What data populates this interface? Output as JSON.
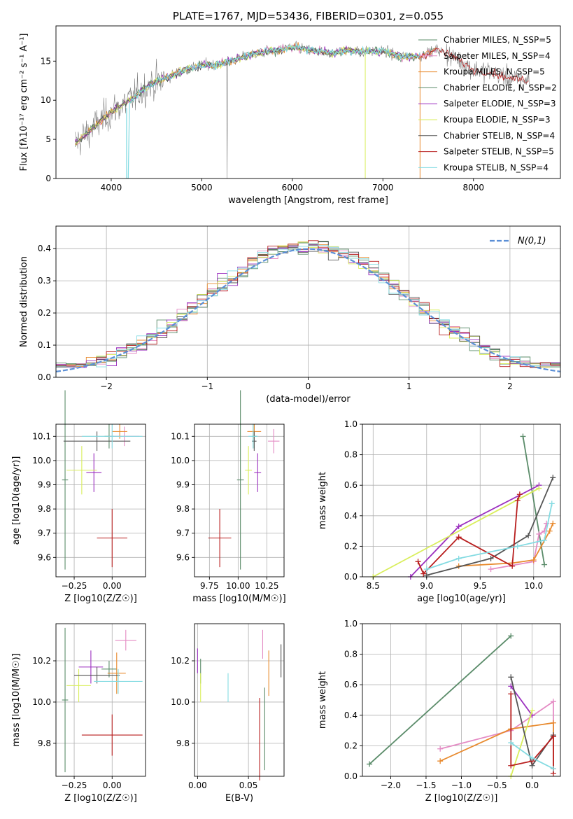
{
  "colors": {
    "chab_miles": "#5b8c6a",
    "salp_miles": "#e48bc4",
    "krou_miles": "#e88a2e",
    "chab_elod": "#5b8c6a",
    "salp_elod": "#9b2fbf",
    "krou_elod": "#d9ee5c",
    "chab_stel": "#555555",
    "salp_stel": "#b81e1e",
    "krou_stel": "#84dbe2",
    "spectrum_data": "#808080",
    "normal_curve": "#5b8fd6"
  },
  "chart_data": [
    {
      "id": "spectrum",
      "type": "line",
      "title": "PLATE=1767, MJD=53436, FIBERID=0301, z=0.055",
      "xlabel": "wavelength [Angstrom, rest frame]",
      "ylabel": "Flux [fλ10⁻¹⁷ erg cm⁻² s⁻¹ A⁻¹]",
      "xlim": [
        3390,
        8960
      ],
      "ylim": [
        0,
        19.5
      ],
      "xticks": [
        4000,
        5000,
        6000,
        7000,
        8000
      ],
      "yticks": [
        0,
        5,
        10,
        15
      ],
      "legend_position": "right",
      "series": [
        {
          "name": "Chabrier MILES, N_SSP=5",
          "key": "chab_miles"
        },
        {
          "name": "Salpeter MILES, N_SSP=4",
          "key": "salp_miles"
        },
        {
          "name": "Kroupa MILES, N_SSP=5",
          "key": "krou_miles"
        },
        {
          "name": "Chabrier ELODIE, N_SSP=2",
          "key": "chab_elod"
        },
        {
          "name": "Salpeter ELODIE, N_SSP=3",
          "key": "salp_elod"
        },
        {
          "name": "Kroupa ELODIE, N_SSP=3",
          "key": "krou_elod"
        },
        {
          "name": "Chabrier STELIB, N_SSP=4",
          "key": "chab_stel"
        },
        {
          "name": "Salpeter STELIB, N_SSP=5",
          "key": "salp_stel"
        },
        {
          "name": "Kroupa STELIB, N_SSP=4",
          "key": "krou_stel"
        }
      ],
      "continuum": {
        "x": [
          3600,
          3800,
          4000,
          4200,
          4400,
          4600,
          4800,
          5000,
          5200,
          5400,
          5600,
          5800,
          6000,
          6200,
          6400,
          6600,
          6800,
          7000,
          7200,
          7400,
          7600,
          7800,
          8000,
          8200,
          8400,
          8600
        ],
        "y": [
          4.5,
          6.5,
          8.5,
          10.0,
          11.8,
          12.8,
          13.8,
          14.5,
          14.6,
          15.3,
          16.0,
          16.3,
          16.8,
          16.4,
          16.0,
          16.4,
          16.2,
          16.3,
          15.6,
          15.6,
          16.5,
          15.4,
          13.9,
          13.6,
          12.8,
          12.6
        ]
      }
    },
    {
      "id": "residuals",
      "type": "histogram",
      "xlabel": "(data-model)/error",
      "ylabel": "Normed distribution",
      "xlim": [
        -2.5,
        2.5
      ],
      "ylim": [
        0,
        0.47
      ],
      "xticks": [
        -2,
        -1,
        0,
        1,
        2
      ],
      "yticks": [
        0.0,
        0.1,
        0.2,
        0.3,
        0.4
      ],
      "legend": "N(0,1)",
      "legend_position": "top-right",
      "grid": true,
      "bin_width": 0.1
    },
    {
      "id": "age_vs_Z",
      "type": "errorbar",
      "xlabel": "Z [log10(Z/Z☉)]",
      "ylabel": "age  [log10(age/yr)]",
      "xlim": [
        -0.37,
        0.22
      ],
      "ylim": [
        9.52,
        10.15
      ],
      "xticks": [
        -0.25,
        0.0
      ],
      "yticks": [
        9.6,
        9.7,
        9.8,
        9.9,
        10.0,
        10.1
      ],
      "points": [
        {
          "key": "chab_miles",
          "x": -0.02,
          "y": 10.1,
          "xerr": 0.03,
          "yerr": 0.05
        },
        {
          "key": "salp_miles",
          "x": 0.08,
          "y": 10.1,
          "xerr": 0.1,
          "yerr": 0.04
        },
        {
          "key": "krou_miles",
          "x": 0.05,
          "y": 10.12,
          "xerr": 0.05,
          "yerr": 0.03
        },
        {
          "key": "chab_elod",
          "x": -0.31,
          "y": 9.92,
          "xerr": 0.02,
          "yerr": 0.37
        },
        {
          "key": "salp_elod",
          "x": -0.12,
          "y": 9.95,
          "xerr": 0.05,
          "yerr": 0.08
        },
        {
          "key": "krou_elod",
          "x": -0.2,
          "y": 9.96,
          "xerr": 0.1,
          "yerr": 0.1
        },
        {
          "key": "chab_stel",
          "x": -0.1,
          "y": 10.08,
          "xerr": 0.22,
          "yerr": 0.04
        },
        {
          "key": "salp_stel",
          "x": 0.0,
          "y": 9.68,
          "xerr": 0.1,
          "yerr": 0.12
        },
        {
          "key": "krou_stel",
          "x": 0.0,
          "y": 10.1,
          "xerr": 0.2,
          "yerr": 0.05
        }
      ]
    },
    {
      "id": "age_vs_mass",
      "type": "errorbar",
      "xlabel": "mass [log10(M/M☉)]",
      "ylabel": "",
      "xlim": [
        9.62,
        10.4
      ],
      "ylim": [
        9.52,
        10.15
      ],
      "xticks": [
        9.75,
        10.0,
        10.25
      ],
      "yticks": [
        9.6,
        9.7,
        9.8,
        9.9,
        10.0,
        10.1
      ],
      "points": [
        {
          "key": "chab_miles",
          "x": 10.14,
          "y": 10.1,
          "xerr": 0.02,
          "yerr": 0.05
        },
        {
          "key": "salp_miles",
          "x": 10.31,
          "y": 10.08,
          "xerr": 0.05,
          "yerr": 0.05
        },
        {
          "key": "krou_miles",
          "x": 10.14,
          "y": 10.12,
          "xerr": 0.06,
          "yerr": 0.03
        },
        {
          "key": "chab_elod",
          "x": 10.02,
          "y": 9.92,
          "xerr": 0.03,
          "yerr": 0.37
        },
        {
          "key": "salp_elod",
          "x": 10.17,
          "y": 9.95,
          "xerr": 0.03,
          "yerr": 0.08
        },
        {
          "key": "krou_elod",
          "x": 10.09,
          "y": 9.96,
          "xerr": 0.03,
          "yerr": 0.1
        },
        {
          "key": "chab_stel",
          "x": 10.14,
          "y": 10.08,
          "xerr": 0.02,
          "yerr": 0.04
        },
        {
          "key": "salp_stel",
          "x": 9.84,
          "y": 9.68,
          "xerr": 0.1,
          "yerr": 0.12
        },
        {
          "key": "krou_stel",
          "x": 10.13,
          "y": 10.1,
          "xerr": 0.04,
          "yerr": 0.05
        }
      ]
    },
    {
      "id": "massweight_vs_age",
      "type": "line",
      "xlabel": "age  [log10(age/yr)]",
      "ylabel": "mass weight",
      "xlim": [
        8.4,
        10.25
      ],
      "ylim": [
        0,
        1.0
      ],
      "xticks": [
        8.5,
        9.0,
        9.5,
        10.0
      ],
      "yticks": [
        0.0,
        0.2,
        0.4,
        0.6,
        0.8,
        1.0
      ],
      "grid": true,
      "series": [
        {
          "key": "chab_elod",
          "x": [
            9.9,
            10.1
          ],
          "y": [
            0.92,
            0.08
          ]
        },
        {
          "key": "salp_miles",
          "x": [
            9.6,
            10.0,
            10.05,
            10.1,
            10.12
          ],
          "y": [
            0.05,
            0.1,
            0.28,
            0.3,
            0.35
          ]
        },
        {
          "key": "krou_miles",
          "x": [
            9.3,
            9.8,
            10.0,
            10.15,
            10.18
          ],
          "y": [
            0.07,
            0.09,
            0.11,
            0.3,
            0.35
          ]
        },
        {
          "key": "salp_elod",
          "x": [
            8.85,
            9.3,
            10.05
          ],
          "y": [
            0.0,
            0.33,
            0.6
          ]
        },
        {
          "key": "krou_elod",
          "x": [
            8.5,
            10.05
          ],
          "y": [
            0.0,
            0.58
          ]
        },
        {
          "key": "chab_stel",
          "x": [
            9.0,
            9.6,
            9.95,
            10.18
          ],
          "y": [
            0.01,
            0.12,
            0.27,
            0.65
          ]
        },
        {
          "key": "salp_stel",
          "x": [
            8.92,
            8.97,
            9.3,
            9.8,
            9.85,
            9.87
          ],
          "y": [
            0.1,
            0.02,
            0.26,
            0.07,
            0.5,
            0.54
          ]
        },
        {
          "key": "krou_stel",
          "x": [
            9.0,
            9.3,
            9.85,
            10.1,
            10.17
          ],
          "y": [
            0.05,
            0.12,
            0.2,
            0.24,
            0.48
          ]
        }
      ]
    },
    {
      "id": "mass_vs_Z",
      "type": "errorbar",
      "xlabel": "Z [log10(Z/Z☉)]",
      "ylabel": "mass [log10(M/M☉)]",
      "xlim": [
        -0.37,
        0.22
      ],
      "ylim": [
        9.64,
        10.38
      ],
      "xticks": [
        -0.25,
        0.0
      ],
      "yticks": [
        9.8,
        10.0,
        10.2
      ],
      "points": [
        {
          "key": "chab_miles",
          "x": -0.02,
          "y": 10.16,
          "xerr": 0.05,
          "yerr": 0.04
        },
        {
          "key": "salp_miles",
          "x": 0.09,
          "y": 10.3,
          "xerr": 0.07,
          "yerr": 0.05
        },
        {
          "key": "krou_miles",
          "x": 0.03,
          "y": 10.14,
          "xerr": 0.06,
          "yerr": 0.1
        },
        {
          "key": "chab_elod",
          "x": -0.31,
          "y": 10.01,
          "xerr": 0.02,
          "yerr": 0.35
        },
        {
          "key": "salp_elod",
          "x": -0.14,
          "y": 10.17,
          "xerr": 0.08,
          "yerr": 0.08
        },
        {
          "key": "krou_elod",
          "x": -0.22,
          "y": 10.08,
          "xerr": 0.08,
          "yerr": 0.08
        },
        {
          "key": "chab_stel",
          "x": -0.1,
          "y": 10.13,
          "xerr": 0.15,
          "yerr": 0.04
        },
        {
          "key": "salp_stel",
          "x": 0.0,
          "y": 9.84,
          "xerr": 0.2,
          "yerr": 0.1
        },
        {
          "key": "krou_stel",
          "x": 0.04,
          "y": 10.1,
          "xerr": 0.16,
          "yerr": 0.06
        }
      ]
    },
    {
      "id": "mass_vs_EBV",
      "type": "errorbar",
      "xlabel": "E(B-V)",
      "ylabel": "",
      "xlim": [
        -0.003,
        0.085
      ],
      "ylim": [
        9.64,
        10.38
      ],
      "xticks": [
        0.0,
        0.05
      ],
      "yticks": [
        9.8,
        10.0,
        10.2
      ],
      "points": [
        {
          "key": "chab_miles",
          "x": 0.066,
          "y": 9.87,
          "xerr": 0.0,
          "yerr": 0.2
        },
        {
          "key": "salp_miles",
          "x": 0.064,
          "y": 10.28,
          "xerr": 0.0,
          "yerr": 0.07
        },
        {
          "key": "krou_miles",
          "x": 0.07,
          "y": 10.14,
          "xerr": 0.0,
          "yerr": 0.11
        },
        {
          "key": "chab_elod",
          "x": 0.003,
          "y": 10.15,
          "xerr": 0.0,
          "yerr": 0.06
        },
        {
          "key": "salp_elod",
          "x": 0.0,
          "y": 10.2,
          "xerr": 0.0,
          "yerr": 0.06
        },
        {
          "key": "krou_elod",
          "x": 0.003,
          "y": 10.07,
          "xerr": 0.0,
          "yerr": 0.07
        },
        {
          "key": "chab_stel",
          "x": 0.082,
          "y": 10.2,
          "xerr": 0.0,
          "yerr": 0.08
        },
        {
          "key": "salp_stel",
          "x": 0.061,
          "y": 9.82,
          "xerr": 0.0,
          "yerr": 0.2
        },
        {
          "key": "krou_stel",
          "x": 0.03,
          "y": 10.07,
          "xerr": 0.0,
          "yerr": 0.07
        }
      ]
    },
    {
      "id": "massweight_vs_Z",
      "type": "line",
      "xlabel": "Z [log10(Z/Z☉)]",
      "ylabel": "mass weight",
      "xlim": [
        -2.4,
        0.4
      ],
      "ylim": [
        0,
        1.0
      ],
      "xticks": [
        -2.0,
        -1.5,
        -1.0,
        -0.5,
        0.0
      ],
      "yticks": [
        0.0,
        0.2,
        0.4,
        0.6,
        0.8,
        1.0
      ],
      "grid": true,
      "series": [
        {
          "key": "chab_elod",
          "x": [
            -2.3,
            -0.3
          ],
          "y": [
            0.08,
            0.92
          ]
        },
        {
          "key": "salp_miles",
          "x": [
            -1.3,
            -0.3,
            0.3,
            0.3
          ],
          "y": [
            0.18,
            0.3,
            0.49,
            0.05
          ]
        },
        {
          "key": "krou_miles",
          "x": [
            -1.3,
            -0.3,
            0.3,
            0.3
          ],
          "y": [
            0.1,
            0.31,
            0.35,
            0.05
          ]
        },
        {
          "key": "salp_elod",
          "x": [
            -0.3,
            0.0
          ],
          "y": [
            0.59,
            0.4
          ]
        },
        {
          "key": "krou_elod",
          "x": [
            -0.3,
            0.0
          ],
          "y": [
            0.0,
            0.43
          ]
        },
        {
          "key": "chab_stel",
          "x": [
            -0.3,
            0.0,
            0.3
          ],
          "y": [
            0.65,
            0.07,
            0.27
          ]
        },
        {
          "key": "salp_stel",
          "x": [
            -0.3,
            -0.3,
            0.0,
            0.3,
            0.3
          ],
          "y": [
            0.54,
            0.07,
            0.1,
            0.26,
            0.02
          ]
        },
        {
          "key": "krou_stel",
          "x": [
            -0.3,
            0.0,
            0.3
          ],
          "y": [
            0.22,
            0.12,
            0.05
          ]
        }
      ]
    }
  ]
}
